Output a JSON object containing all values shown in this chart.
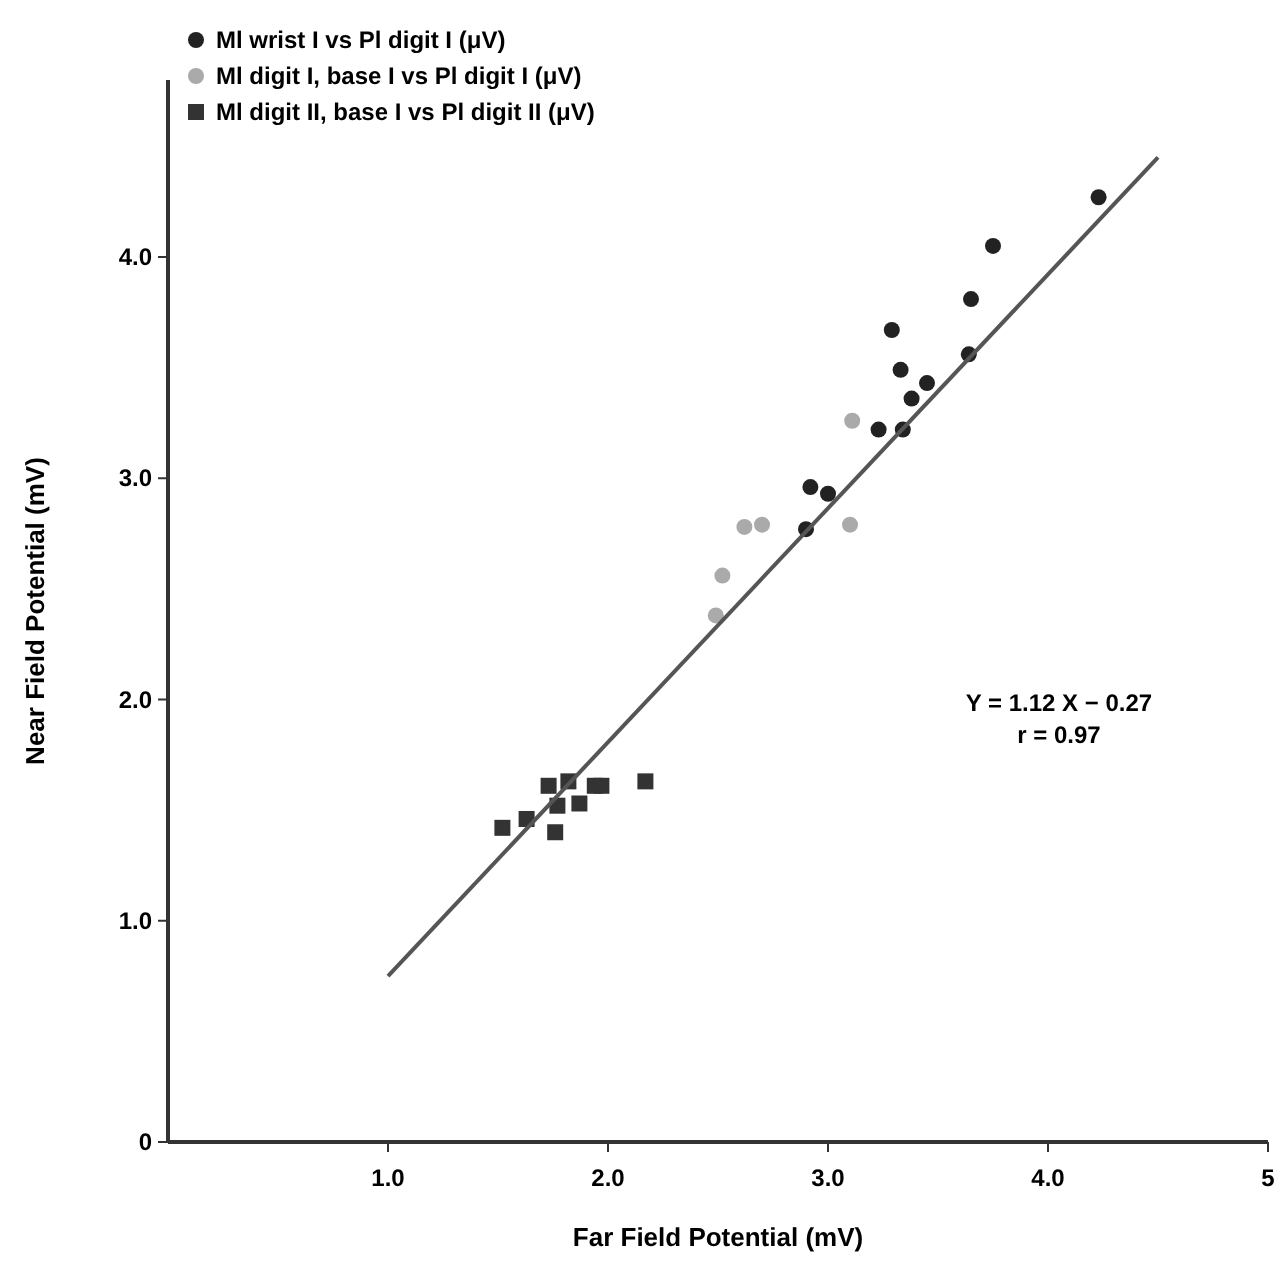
{
  "chart_data": {
    "type": "scatter",
    "xlabel": "Far Field Potential (mV)",
    "ylabel": "Near Field Potential (mV)",
    "xlim": [
      0,
      5
    ],
    "ylim": [
      0,
      4.8
    ],
    "xticks": [
      {
        "value": 1,
        "label": "1.0"
      },
      {
        "value": 2,
        "label": "2.0"
      },
      {
        "value": 3,
        "label": "3.0"
      },
      {
        "value": 4,
        "label": "4.0"
      },
      {
        "value": 5,
        "label": "5"
      }
    ],
    "yticks": [
      0,
      {
        "value": 1,
        "label": "1.0"
      },
      {
        "value": 2,
        "label": "2.0"
      },
      {
        "value": 3,
        "label": "3.0"
      },
      {
        "value": 4,
        "label": "4.0"
      }
    ],
    "grid": false,
    "legend": "top left",
    "annotations": [
      "Y = 1.12 X − 0.27",
      "r = 0.97"
    ],
    "series": [
      {
        "name": "Ml wrist I vs Pl digit I (μV)",
        "color": "#222222",
        "marker": "circle",
        "x": [
          4.23,
          3.75,
          3.65,
          3.64,
          3.29,
          3.33,
          3.45,
          3.38,
          3.34,
          3.23,
          2.92,
          3.0,
          2.9
        ],
        "values": [
          4.27,
          4.05,
          3.81,
          3.56,
          3.67,
          3.49,
          3.43,
          3.36,
          3.22,
          3.22,
          2.96,
          2.93,
          2.77
        ]
      },
      {
        "name": "Ml digit I, base I vs Pl digit I (μV)",
        "color": "#aaaaaa",
        "marker": "circle",
        "x": [
          3.11,
          3.1,
          2.7,
          2.62,
          2.52,
          2.49
        ],
        "values": [
          3.26,
          2.79,
          2.79,
          2.78,
          2.56,
          2.38
        ]
      },
      {
        "name": "Ml digit II, base I vs Pl digit II (μV)",
        "color": "#333333",
        "marker": "square",
        "x": [
          1.73,
          1.82,
          1.94,
          1.97,
          1.87,
          1.77,
          1.63,
          1.76,
          1.52,
          2.17
        ],
        "values": [
          1.61,
          1.63,
          1.61,
          1.61,
          1.53,
          1.52,
          1.46,
          1.4,
          1.42,
          1.63
        ]
      },
      {
        "type": "line",
        "color": "#555555",
        "marker": "none",
        "x": [
          1.0,
          4.5
        ],
        "values": [
          0.75,
          4.45
        ]
      }
    ]
  }
}
